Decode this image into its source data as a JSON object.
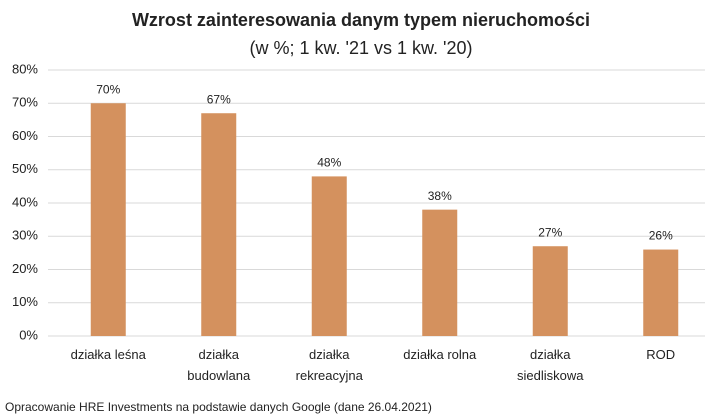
{
  "chart_data": {
    "type": "bar",
    "title": "Wzrost zainteresowania danym typem nieruchomości",
    "subtitle": "(w %; 1 kw. '21 vs 1 kw. '20)",
    "categories": [
      "działka leśna",
      "działka budowlana",
      "działka rekreacyjna",
      "działka rolna",
      "działka siedliskowa",
      "ROD"
    ],
    "values": [
      70,
      67,
      48,
      38,
      27,
      26
    ],
    "value_labels": [
      "70%",
      "67%",
      "48%",
      "38%",
      "27%",
      "26%"
    ],
    "color": "#d4915e",
    "ylim": [
      0,
      80
    ],
    "yticks": [
      {
        "value": 0,
        "label": "0%"
      },
      {
        "value": 10,
        "label": "10%"
      },
      {
        "value": 20,
        "label": "20%"
      },
      {
        "value": 30,
        "label": "30%"
      },
      {
        "value": 40,
        "label": "40%"
      },
      {
        "value": 50,
        "label": "50%"
      },
      {
        "value": 60,
        "label": "60%"
      },
      {
        "value": 70,
        "label": "70%"
      },
      {
        "value": 80,
        "label": "80%"
      }
    ],
    "grid": true,
    "source": "Opracowanie HRE Investments na podstawie danych Google (dane 26.04.2021)"
  }
}
